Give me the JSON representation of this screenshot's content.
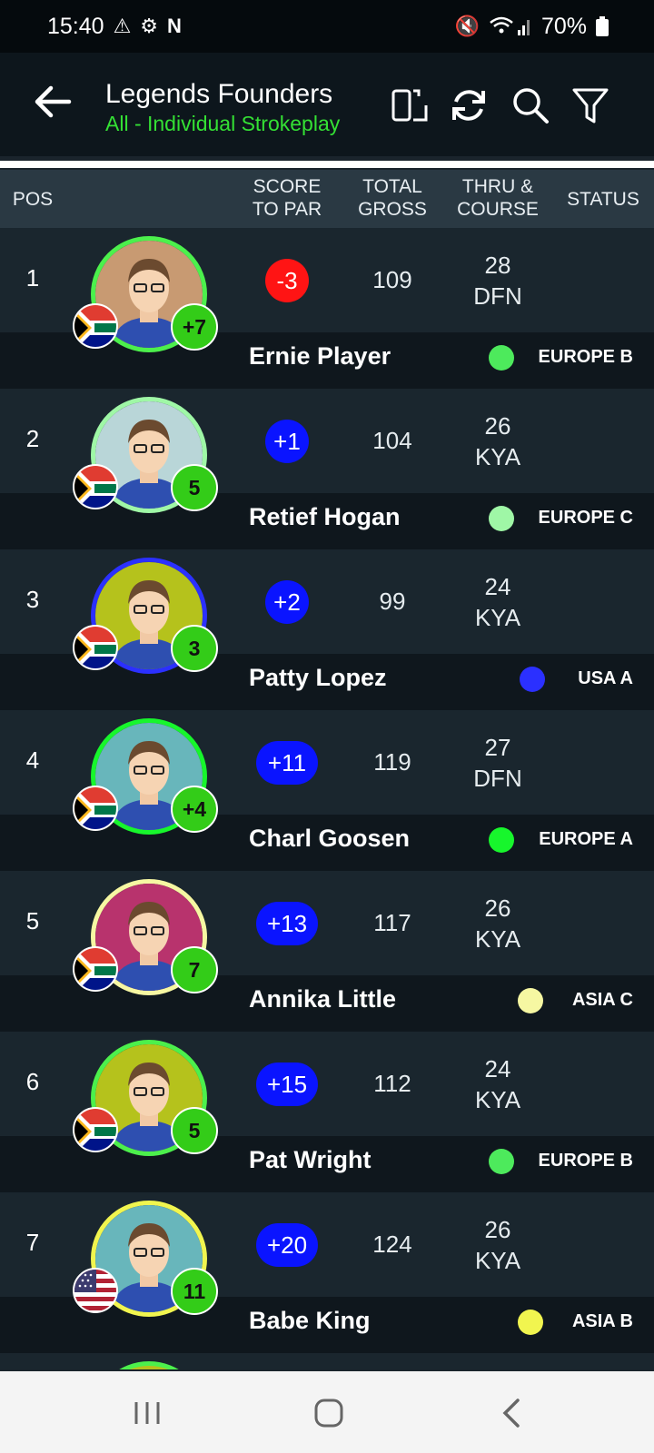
{
  "status_bar": {
    "time": "15:40",
    "battery": "70%"
  },
  "app_bar": {
    "title": "Legends Founders",
    "subtitle": "All - Individual Strokeplay"
  },
  "headers": {
    "pos": "POS",
    "score_l1": "SCORE",
    "score_l2": "TO PAR",
    "gross_l1": "TOTAL",
    "gross_l2": "GROSS",
    "thru_l1": "THRU &",
    "thru_l2": "COURSE",
    "status": "STATUS"
  },
  "rows": [
    {
      "pos": "1",
      "score": "-3",
      "score_type": "neg",
      "gross": "109",
      "thru": "28",
      "course": "DFN",
      "name": "Ernie Player",
      "team": "EUROPE B",
      "team_color": "#4dea5c",
      "hcp": "+7",
      "ring": "#4cf04c",
      "bg": "#c89a72",
      "flag": "za"
    },
    {
      "pos": "2",
      "score": "+1",
      "score_type": "pos",
      "gross": "104",
      "thru": "26",
      "course": "KYA",
      "name": "Retief Hogan",
      "team": "EUROPE C",
      "team_color": "#9ff7a6",
      "hcp": "5",
      "ring": "#9ff7a6",
      "bg": "#b9d6d8",
      "flag": "za"
    },
    {
      "pos": "3",
      "score": "+2",
      "score_type": "pos",
      "gross": "99",
      "thru": "24",
      "course": "KYA",
      "name": "Patty Lopez",
      "team": "USA A",
      "team_color": "#2b30ff",
      "hcp": "3",
      "ring": "#2b30ff",
      "bg": "#b5c21c",
      "flag": "za"
    },
    {
      "pos": "4",
      "score": "+11",
      "score_type": "pos",
      "gross": "119",
      "thru": "27",
      "course": "DFN",
      "name": "Charl Goosen",
      "team": "EUROPE A",
      "team_color": "#17f62c",
      "hcp": "+4",
      "ring": "#17f62c",
      "bg": "#68b6bb",
      "flag": "za"
    },
    {
      "pos": "5",
      "score": "+13",
      "score_type": "pos",
      "gross": "117",
      "thru": "26",
      "course": "KYA",
      "name": "Annika Little",
      "team": "ASIA C",
      "team_color": "#f6f7a2",
      "hcp": "7",
      "ring": "#f6f7a2",
      "bg": "#b8336d",
      "flag": "za"
    },
    {
      "pos": "6",
      "score": "+15",
      "score_type": "pos",
      "gross": "112",
      "thru": "24",
      "course": "KYA",
      "name": "Pat Wright",
      "team": "EUROPE B",
      "team_color": "#4dea5c",
      "hcp": "5",
      "ring": "#4cf04c",
      "bg": "#b5c21c",
      "flag": "za"
    },
    {
      "pos": "7",
      "score": "+20",
      "score_type": "pos",
      "gross": "124",
      "thru": "26",
      "course": "KYA",
      "name": "Babe King",
      "team": "ASIA B",
      "team_color": "#f1f54f",
      "hcp": "11",
      "ring": "#f1f54f",
      "bg": "#68b6bb",
      "flag": "us"
    }
  ]
}
